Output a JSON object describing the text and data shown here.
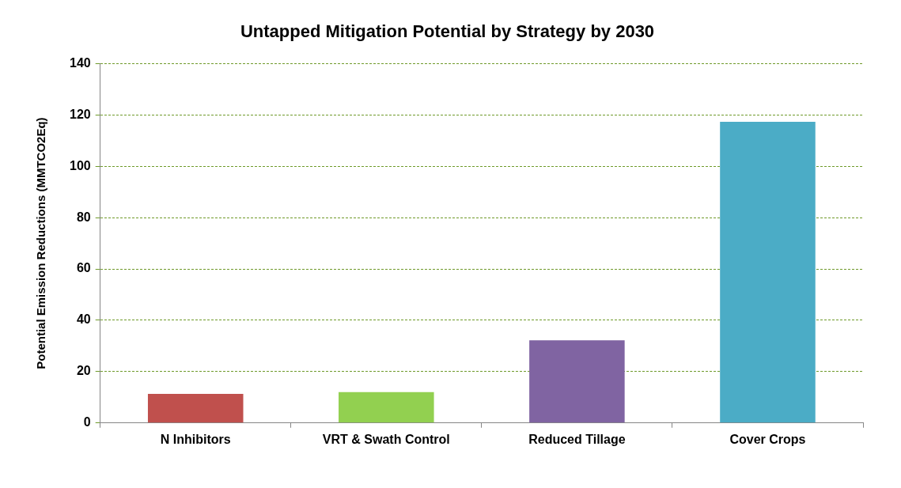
{
  "chart_data": {
    "type": "bar",
    "title": "Untapped Mitigation Potential by Strategy by 2030",
    "ylabel": "Potential Emission Reductions (MMTCO2Eq)",
    "categories": [
      "N Inhibitors",
      "VRT & Swath Control",
      "Reduced Tillage",
      "Cover Crops"
    ],
    "values": [
      11.3,
      12,
      32.2,
      117.3
    ],
    "colors": [
      "#c0504d",
      "#92d050",
      "#8064a2",
      "#4bacc6"
    ],
    "ylim": [
      0,
      140
    ],
    "yticks": [
      0,
      20,
      40,
      60,
      80,
      100,
      120,
      140
    ],
    "grid": "y",
    "line_style": "dashed",
    "legend": false
  }
}
